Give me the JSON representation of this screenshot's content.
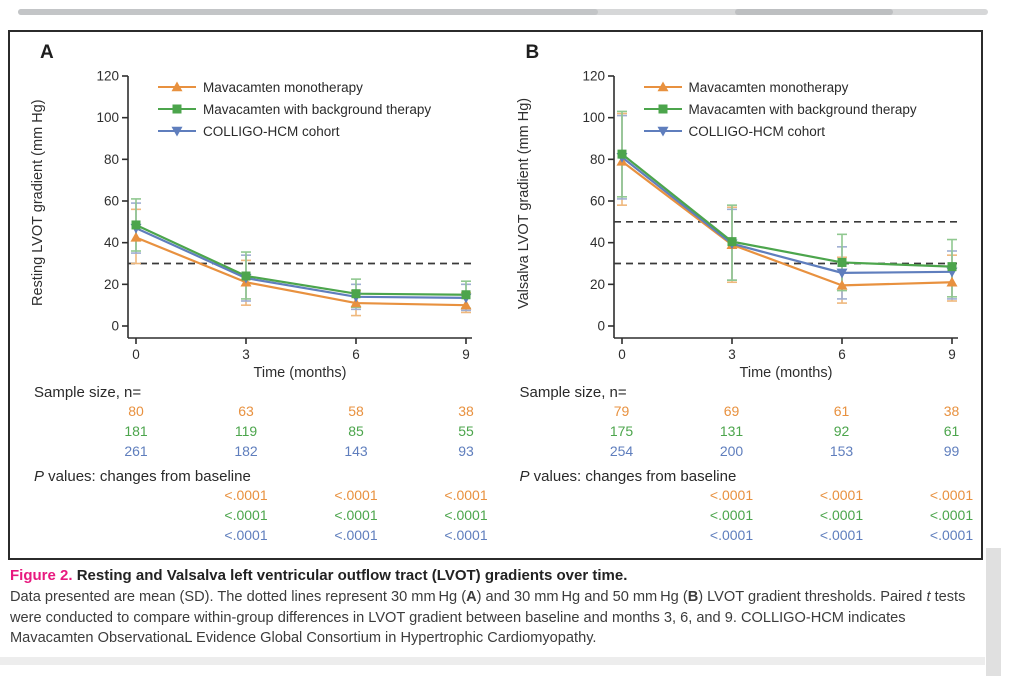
{
  "legend": [
    "Mavacamten monotherapy",
    "Mavacamten with background therapy",
    "COLLIGO-HCM cohort"
  ],
  "panels": [
    {
      "label": "A",
      "sample_size_label": "Sample size, n=",
      "p_label_prefix": "P",
      "p_label_rest": " values: changes from baseline",
      "sample_sizes": [
        [
          80,
          63,
          58,
          38
        ],
        [
          181,
          119,
          85,
          55
        ],
        [
          261,
          182,
          143,
          93
        ]
      ],
      "p_values": [
        [
          "<.0001",
          "<.0001",
          "<.0001"
        ],
        [
          "<.0001",
          "<.0001",
          "<.0001"
        ],
        [
          "<.0001",
          "<.0001",
          "<.0001"
        ]
      ]
    },
    {
      "label": "B",
      "sample_size_label": "Sample size, n=",
      "p_label_prefix": "P",
      "p_label_rest": " values: changes from baseline",
      "sample_sizes": [
        [
          79,
          69,
          61,
          38
        ],
        [
          175,
          131,
          92,
          61
        ],
        [
          254,
          200,
          153,
          99
        ]
      ],
      "p_values": [
        [
          "<.0001",
          "<.0001",
          "<.0001"
        ],
        [
          "<.0001",
          "<.0001",
          "<.0001"
        ],
        [
          "<.0001",
          "<.0001",
          "<.0001"
        ]
      ]
    }
  ],
  "chart_data": [
    {
      "type": "line",
      "x": [
        0,
        3,
        6,
        9
      ],
      "xlabel": "Time (months)",
      "ylabel": "Resting LVOT gradient (mm Hg)",
      "ylim": [
        0,
        120
      ],
      "yticks": [
        0,
        20,
        40,
        60,
        80,
        100,
        120
      ],
      "thresholds": [
        30
      ],
      "legend_position": "inside-top-left",
      "series": [
        {
          "name": "Mavacamten monotherapy",
          "marker": "triangle-up",
          "color": "#E8913F",
          "err_color": "#EFB87D",
          "values": [
            42.5,
            21,
            11,
            10
          ],
          "sd_upper": [
            56,
            31.5,
            17,
            16
          ],
          "sd_lower": [
            30,
            10,
            5,
            6.5
          ]
        },
        {
          "name": "Mavacamten with background therapy",
          "marker": "square",
          "color": "#4CA54C",
          "err_color": "#90C890",
          "values": [
            48.5,
            24,
            15.5,
            15
          ],
          "sd_upper": [
            61,
            35.5,
            22.5,
            21.5
          ],
          "sd_lower": [
            36,
            13,
            9,
            8.5
          ]
        },
        {
          "name": "COLLIGO-HCM cohort",
          "marker": "triangle-down",
          "color": "#5F7EBD",
          "err_color": "#9FAED2",
          "values": [
            47,
            23,
            14,
            13.5
          ],
          "sd_upper": [
            59,
            34,
            20,
            20
          ],
          "sd_lower": [
            35,
            12,
            8,
            7.5
          ]
        }
      ]
    },
    {
      "type": "line",
      "x": [
        0,
        3,
        6,
        9
      ],
      "xlabel": "Time (months)",
      "ylabel": "Valsalva LVOT gradient (mm Hg)",
      "ylim": [
        0,
        120
      ],
      "yticks": [
        0,
        20,
        40,
        60,
        80,
        100,
        120
      ],
      "thresholds": [
        30,
        50
      ],
      "legend_position": "inside-top-left",
      "series": [
        {
          "name": "Mavacamten monotherapy",
          "marker": "triangle-up",
          "color": "#E8913F",
          "err_color": "#EFB87D",
          "values": [
            79,
            39,
            19.5,
            21
          ],
          "sd_upper": [
            102,
            57,
            33,
            34
          ],
          "sd_lower": [
            58,
            21,
            11,
            12
          ]
        },
        {
          "name": "Mavacamten with background therapy",
          "marker": "square",
          "color": "#4CA54C",
          "err_color": "#90C890",
          "values": [
            82.5,
            40.5,
            30.5,
            28.5
          ],
          "sd_upper": [
            103,
            58,
            44,
            41.5
          ],
          "sd_lower": [
            62,
            22,
            17,
            14
          ]
        },
        {
          "name": "COLLIGO-HCM cohort",
          "marker": "triangle-down",
          "color": "#5F7EBD",
          "err_color": "#9FAED2",
          "values": [
            81,
            39.5,
            25.5,
            26
          ],
          "sd_upper": [
            101,
            56,
            38,
            36
          ],
          "sd_lower": [
            61,
            22,
            13,
            13
          ]
        }
      ]
    }
  ],
  "caption": {
    "title_segments": [
      {
        "text": "Figure 2. ",
        "bold": true,
        "pink": true
      },
      {
        "text": "Resting and Valsalva left ventricular outflow tract (LVOT) gradients over time.",
        "bold": true
      }
    ],
    "body_segments": [
      {
        "text": "Data presented are mean (SD). The dotted lines represent 30 mm Hg ("
      },
      {
        "text": "A",
        "bold": true
      },
      {
        "text": ") and 30 mm Hg and 50 mm Hg ("
      },
      {
        "text": "B",
        "bold": true
      },
      {
        "text": ") LVOT gradient thresholds. Paired "
      },
      {
        "text": "t",
        "italic": true
      },
      {
        "text": " tests were conducted to compare within-group differences in LVOT gradient between baseline and months 3, 6, and 9. COLLIGO-HCM indicates Mavacamten ObservationaL Evidence Global Consortium in Hypertrophic Cardiomyopathy."
      }
    ]
  },
  "colors": {
    "monotherapy": "#E8913F",
    "background_therapy": "#4CA54C",
    "colligo_cohort": "#5F7EBD",
    "threshold_dash": "#3a3a3a",
    "figure_label_pink": "#E8197F"
  }
}
